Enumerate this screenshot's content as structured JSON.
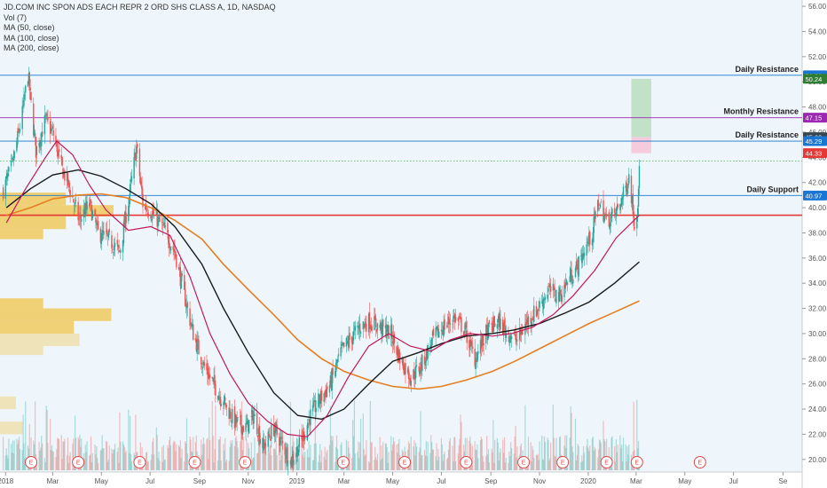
{
  "legend": {
    "title": "JD.COM INC SPON ADS EACH REPR 2 ORD SHS CLASS A, 1D, NASDAQ",
    "vol": "Vol (7)",
    "ma50": "MA (50, close)",
    "ma100": "MA (100, close)",
    "ma200": "MA (200, close)"
  },
  "colors": {
    "background": "#eef6fb",
    "up": "#26a69a",
    "down": "#ef5350",
    "ma50": "#c2185b",
    "ma100": "#1a1a1a",
    "ma200": "#e67e22",
    "resistance_line": "#1976d2",
    "monthly_line": "#9c27b0",
    "support_line": "#1976d2",
    "key_line": "#e53935",
    "target_zone": "#a5d6a7",
    "stop_zone": "#f8bbd0",
    "volume_profile": "#f0c040"
  },
  "chart_data": {
    "type": "candlestick",
    "title": "JD.COM INC SPON ADS EACH REPR 2 ORD SHS CLASS A, 1D, NASDAQ",
    "x_range": [
      "2017-12-25",
      "2020-09-25"
    ],
    "y_range": [
      19.0,
      56.5
    ],
    "y_ticks": [
      20,
      22,
      24,
      26,
      28,
      30,
      32,
      34,
      36,
      38,
      40,
      42,
      44,
      46,
      48,
      50,
      52,
      54,
      56
    ],
    "y_tick_labels": [
      "20.00",
      "22.00",
      "24.00",
      "26.00",
      "28.00",
      "30.00",
      "32.00",
      "34.00",
      "36.00",
      "38.00",
      "40.00",
      "42.00",
      "44.00",
      "46.00",
      "48.00",
      "50.00",
      "52.00",
      "54.00",
      "56.00"
    ],
    "x_ticks": [
      {
        "date": "2018-01-01",
        "label": "2018"
      },
      {
        "date": "2018-03-01",
        "label": "Mar"
      },
      {
        "date": "2018-05-01",
        "label": "May"
      },
      {
        "date": "2018-07-01",
        "label": "Jul"
      },
      {
        "date": "2018-09-01",
        "label": "Sep"
      },
      {
        "date": "2018-11-01",
        "label": "Nov"
      },
      {
        "date": "2019-01-01",
        "label": "2019"
      },
      {
        "date": "2019-03-01",
        "label": "Mar"
      },
      {
        "date": "2019-05-01",
        "label": "May"
      },
      {
        "date": "2019-07-01",
        "label": "Jul"
      },
      {
        "date": "2019-09-01",
        "label": "Sep"
      },
      {
        "date": "2019-11-01",
        "label": "Nov"
      },
      {
        "date": "2020-01-01",
        "label": "2020"
      },
      {
        "date": "2020-03-01",
        "label": "Mar"
      },
      {
        "date": "2020-05-01",
        "label": "May"
      },
      {
        "date": "2020-07-01",
        "label": "Jul"
      },
      {
        "date": "2020-09-01",
        "label": "Se"
      }
    ],
    "price_path": [
      [
        "2017-12-29",
        41.4
      ],
      [
        "2018-01-10",
        43.5
      ],
      [
        "2018-01-22",
        47.5
      ],
      [
        "2018-01-29",
        50.6
      ],
      [
        "2018-02-08",
        44.5
      ],
      [
        "2018-02-20",
        47.0
      ],
      [
        "2018-03-02",
        45.8
      ],
      [
        "2018-03-12",
        43.2
      ],
      [
        "2018-03-22",
        41.6
      ],
      [
        "2018-04-03",
        39.0
      ],
      [
        "2018-04-16",
        40.3
      ],
      [
        "2018-04-27",
        38.0
      ],
      [
        "2018-05-10",
        37.5
      ],
      [
        "2018-05-24",
        36.5
      ],
      [
        "2018-06-04",
        40.5
      ],
      [
        "2018-06-14",
        44.8
      ],
      [
        "2018-06-22",
        40.3
      ],
      [
        "2018-07-05",
        39.5
      ],
      [
        "2018-07-19",
        38.2
      ],
      [
        "2018-08-01",
        36.5
      ],
      [
        "2018-08-13",
        33.0
      ],
      [
        "2018-08-24",
        30.0
      ],
      [
        "2018-09-06",
        27.5
      ],
      [
        "2018-09-20",
        25.8
      ],
      [
        "2018-10-02",
        24.5
      ],
      [
        "2018-10-15",
        23.0
      ],
      [
        "2018-10-29",
        22.5
      ],
      [
        "2018-11-08",
        23.5
      ],
      [
        "2018-11-20",
        21.0
      ],
      [
        "2018-12-03",
        22.5
      ],
      [
        "2018-12-14",
        21.2
      ],
      [
        "2018-12-24",
        19.8
      ],
      [
        "2019-01-07",
        21.5
      ],
      [
        "2019-01-18",
        23.5
      ],
      [
        "2019-01-30",
        24.8
      ],
      [
        "2019-02-12",
        26.0
      ],
      [
        "2019-02-25",
        28.5
      ],
      [
        "2019-03-08",
        29.5
      ],
      [
        "2019-03-20",
        30.5
      ],
      [
        "2019-04-02",
        31.0
      ],
      [
        "2019-04-15",
        30.5
      ],
      [
        "2019-04-29",
        30.0
      ],
      [
        "2019-05-10",
        28.0
      ],
      [
        "2019-05-24",
        26.5
      ],
      [
        "2019-06-06",
        27.5
      ],
      [
        "2019-06-20",
        29.5
      ],
      [
        "2019-07-03",
        30.5
      ],
      [
        "2019-07-17",
        31.3
      ],
      [
        "2019-07-30",
        30.3
      ],
      [
        "2019-08-12",
        28.0
      ],
      [
        "2019-08-26",
        30.0
      ],
      [
        "2019-09-09",
        31.0
      ],
      [
        "2019-09-23",
        30.0
      ],
      [
        "2019-10-04",
        29.5
      ],
      [
        "2019-10-17",
        31.0
      ],
      [
        "2019-10-30",
        32.0
      ],
      [
        "2019-11-12",
        33.5
      ],
      [
        "2019-11-26",
        33.0
      ],
      [
        "2019-12-09",
        34.5
      ],
      [
        "2019-12-20",
        35.5
      ],
      [
        "2020-01-06",
        38.0
      ],
      [
        "2020-01-14",
        40.5
      ],
      [
        "2020-01-24",
        39.0
      ],
      [
        "2020-02-04",
        39.5
      ],
      [
        "2020-02-14",
        41.0
      ],
      [
        "2020-02-21",
        42.5
      ],
      [
        "2020-02-25",
        40.5
      ],
      [
        "2020-02-28",
        38.5
      ],
      [
        "2020-03-03",
        40.5
      ],
      [
        "2020-03-05",
        43.7
      ]
    ],
    "ma50_path": [
      [
        "2018-01-02",
        38.8
      ],
      [
        "2018-01-26",
        41.5
      ],
      [
        "2018-02-20",
        44.0
      ],
      [
        "2018-03-06",
        45.3
      ],
      [
        "2018-03-26",
        44.2
      ],
      [
        "2018-04-16",
        41.8
      ],
      [
        "2018-05-07",
        39.8
      ],
      [
        "2018-06-04",
        38.2
      ],
      [
        "2018-07-02",
        38.5
      ],
      [
        "2018-07-26",
        37.8
      ],
      [
        "2018-08-20",
        34.5
      ],
      [
        "2018-09-14",
        30.0
      ],
      [
        "2018-10-09",
        26.8
      ],
      [
        "2018-11-01",
        24.5
      ],
      [
        "2018-11-26",
        23.0
      ],
      [
        "2018-12-20",
        22.0
      ],
      [
        "2019-01-14",
        21.8
      ],
      [
        "2019-02-08",
        23.5
      ],
      [
        "2019-03-06",
        26.5
      ],
      [
        "2019-04-01",
        29.0
      ],
      [
        "2019-04-26",
        30.0
      ],
      [
        "2019-05-23",
        29.0
      ],
      [
        "2019-06-18",
        28.6
      ],
      [
        "2019-07-12",
        29.5
      ],
      [
        "2019-08-06",
        30.0
      ],
      [
        "2019-09-03",
        29.8
      ],
      [
        "2019-09-27",
        30.0
      ],
      [
        "2019-10-23",
        30.5
      ],
      [
        "2019-11-18",
        31.5
      ],
      [
        "2019-12-13",
        33.0
      ],
      [
        "2020-01-09",
        35.0
      ],
      [
        "2020-02-05",
        37.6
      ],
      [
        "2020-03-05",
        39.4
      ]
    ],
    "ma100_path": [
      [
        "2018-01-02",
        40.0
      ],
      [
        "2018-02-01",
        41.5
      ],
      [
        "2018-03-01",
        42.6
      ],
      [
        "2018-04-02",
        43.0
      ],
      [
        "2018-05-01",
        42.5
      ],
      [
        "2018-06-01",
        41.5
      ],
      [
        "2018-07-02",
        40.3
      ],
      [
        "2018-08-01",
        38.5
      ],
      [
        "2018-09-04",
        35.5
      ],
      [
        "2018-10-01",
        32.0
      ],
      [
        "2018-11-01",
        28.5
      ],
      [
        "2018-12-03",
        25.3
      ],
      [
        "2019-01-02",
        23.5
      ],
      [
        "2019-02-01",
        23.2
      ],
      [
        "2019-03-01",
        24.0
      ],
      [
        "2019-04-01",
        26.0
      ],
      [
        "2019-05-01",
        27.8
      ],
      [
        "2019-06-03",
        28.5
      ],
      [
        "2019-07-01",
        29.2
      ],
      [
        "2019-08-01",
        29.8
      ],
      [
        "2019-09-03",
        30.0
      ],
      [
        "2019-10-01",
        30.3
      ],
      [
        "2019-11-01",
        30.8
      ],
      [
        "2019-12-02",
        31.6
      ],
      [
        "2020-01-02",
        32.5
      ],
      [
        "2020-02-03",
        34.0
      ],
      [
        "2020-03-05",
        35.7
      ]
    ],
    "ma200_path": [
      [
        "2018-01-02",
        39.4
      ],
      [
        "2018-02-01",
        40.0
      ],
      [
        "2018-03-01",
        40.7
      ],
      [
        "2018-04-02",
        41.0
      ],
      [
        "2018-05-01",
        41.1
      ],
      [
        "2018-06-01",
        40.8
      ],
      [
        "2018-07-02",
        40.0
      ],
      [
        "2018-08-01",
        39.0
      ],
      [
        "2018-09-04",
        37.5
      ],
      [
        "2018-10-01",
        35.5
      ],
      [
        "2018-11-01",
        33.5
      ],
      [
        "2018-12-03",
        31.5
      ],
      [
        "2019-01-02",
        29.5
      ],
      [
        "2019-02-01",
        28.0
      ],
      [
        "2019-03-01",
        27.0
      ],
      [
        "2019-04-01",
        26.3
      ],
      [
        "2019-05-01",
        25.8
      ],
      [
        "2019-06-03",
        25.6
      ],
      [
        "2019-07-01",
        25.8
      ],
      [
        "2019-08-01",
        26.3
      ],
      [
        "2019-09-03",
        27.0
      ],
      [
        "2019-10-01",
        27.8
      ],
      [
        "2019-11-01",
        28.8
      ],
      [
        "2019-12-02",
        29.8
      ],
      [
        "2020-01-02",
        30.8
      ],
      [
        "2020-02-03",
        31.7
      ],
      [
        "2020-03-05",
        32.6
      ]
    ],
    "horizontal_levels": [
      {
        "name": "Daily Resistance",
        "value": 50.52,
        "label": "50.52",
        "color": "#1976d2",
        "annotation": "Daily Resistance"
      },
      {
        "name": "Monthly Resistance",
        "value": 47.15,
        "label": "47.15",
        "color": "#9c27b0",
        "annotation": "Monthly Resistance"
      },
      {
        "name": "Daily Resistance",
        "value": 45.29,
        "label": "45.29",
        "color": "#1976d2",
        "annotation": "Daily Resistance"
      },
      {
        "name": "Daily Support",
        "value": 40.97,
        "label": "40.97",
        "color": "#1976d2",
        "annotation": "Daily Support"
      },
      {
        "name": "Key Level",
        "value": 39.4,
        "label": "",
        "color": "#e53935",
        "annotation": ""
      }
    ],
    "price_tags": [
      {
        "value": 50.52,
        "label": "50.52",
        "color": "#1976d2"
      },
      {
        "value": 50.24,
        "label": "50.24",
        "color": "#2e7d32"
      },
      {
        "value": 47.15,
        "label": "47.15",
        "color": "#9c27b0"
      },
      {
        "value": 45.6,
        "label": "45.60",
        "color": "#37474f"
      },
      {
        "value": 45.29,
        "label": "45.29",
        "color": "#1976d2"
      },
      {
        "value": 44.33,
        "label": "44.33",
        "color": "#e53935"
      },
      {
        "value": 40.97,
        "label": "40.97",
        "color": "#1976d2"
      }
    ],
    "position": {
      "start": "2020-02-24",
      "end": "2020-03-20",
      "target": 50.24,
      "entry": 45.6,
      "stop": 44.33
    },
    "earnings_dates": [
      "2018-02-02",
      "2018-04-02",
      "2018-06-18",
      "2018-08-26",
      "2018-10-28",
      "2019-02-28",
      "2019-05-16",
      "2019-08-01",
      "2019-10-12",
      "2019-11-30",
      "2020-01-24",
      "2020-03-02",
      "2020-05-20"
    ],
    "earnings_label": "E",
    "volume_profile": [
      {
        "low": 40.2,
        "high": 41.2,
        "width": 0.58
      },
      {
        "low": 39.3,
        "high": 40.2,
        "width": 1.0
      },
      {
        "low": 38.3,
        "high": 39.3,
        "width": 0.58
      },
      {
        "low": 37.5,
        "high": 38.3,
        "width": 0.38
      },
      {
        "low": 32.0,
        "high": 32.8,
        "width": 0.38
      },
      {
        "low": 31.0,
        "high": 32.0,
        "width": 0.98
      },
      {
        "low": 30.0,
        "high": 31.0,
        "width": 0.65
      },
      {
        "low": 29.0,
        "high": 30.0,
        "width": 0.7
      },
      {
        "low": 28.3,
        "high": 29.0,
        "width": 0.38
      },
      {
        "low": 24.0,
        "high": 25.0,
        "width": 0.14
      },
      {
        "low": 22.0,
        "high": 23.0,
        "width": 0.2
      }
    ]
  }
}
